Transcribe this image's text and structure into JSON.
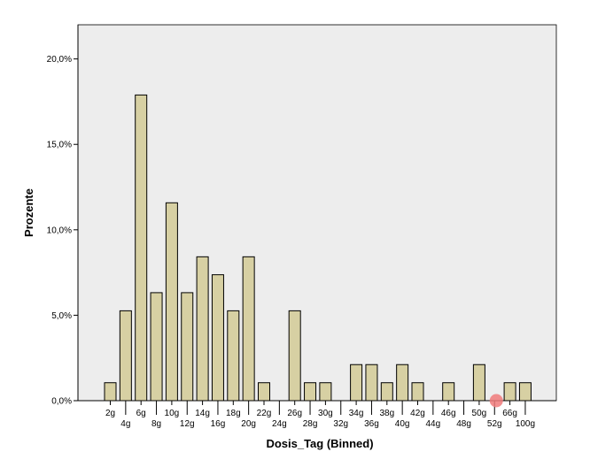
{
  "chart_data": {
    "type": "bar",
    "xlabel": "Dosis_Tag (Binned)",
    "ylabel": "Prozente",
    "ylim": [
      0,
      22
    ],
    "yticks": [
      {
        "value": 0,
        "label": "0,0%"
      },
      {
        "value": 5,
        "label": "5,0%"
      },
      {
        "value": 10,
        "label": "10,0%"
      },
      {
        "value": 15,
        "label": "15,0%"
      },
      {
        "value": 20,
        "label": "20,0%"
      }
    ],
    "categories": [
      "2g",
      "4g",
      "6g",
      "8g",
      "10g",
      "12g",
      "14g",
      "16g",
      "18g",
      "20g",
      "22g",
      "24g",
      "26g",
      "28g",
      "30g",
      "32g",
      "34g",
      "36g",
      "38g",
      "40g",
      "42g",
      "44g",
      "46g",
      "48g",
      "50g",
      "52g",
      "66g",
      "100g"
    ],
    "values": [
      1.05,
      5.26,
      17.89,
      6.32,
      11.58,
      6.32,
      8.42,
      7.37,
      5.26,
      8.42,
      1.05,
      0,
      5.26,
      1.05,
      1.05,
      0,
      2.11,
      2.11,
      1.05,
      2.11,
      1.05,
      0,
      1.05,
      0,
      2.11,
      0,
      1.05,
      1.05
    ],
    "grid": false,
    "legend": "none",
    "colors": {
      "plot_background": "#ededed",
      "bar_fill": "#d7d0a3",
      "bar_stroke": "#000000",
      "axis": "#000000",
      "marker": "#f07a7a"
    },
    "marker_at_category": "52g"
  }
}
